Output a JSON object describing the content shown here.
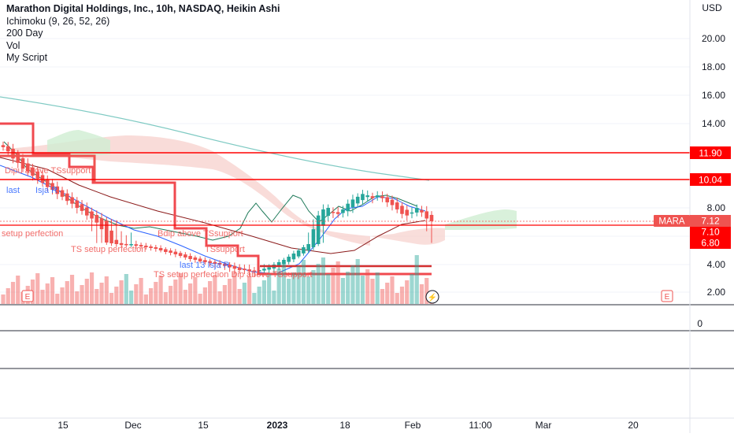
{
  "header": {
    "title": "Marathon Digital Holdings, Inc., 10h, NASDAQ, Heikin Ashi",
    "indicators": [
      "Ichimoku (9, 26, 52, 26)",
      "200 Day",
      "Vol",
      "My Script"
    ]
  },
  "price_axis": {
    "currency": "USD",
    "ticks": [
      "20.00",
      "18.00",
      "16.00",
      "14.00",
      "8.00",
      "4.00",
      "2.00"
    ],
    "volume_tick": "0"
  },
  "levels": [
    {
      "value": 11.9,
      "label": "11.90"
    },
    {
      "value": 10.04,
      "label": "10.04"
    },
    {
      "value": 7.1,
      "label": "7.10"
    },
    {
      "value": 6.8,
      "label": "6.80"
    }
  ],
  "price_tag": {
    "symbol": "MARA",
    "value": "7.12"
  },
  "time_axis": [
    "15",
    "Dec",
    "15",
    "2023",
    "18",
    "Feb",
    "11:00",
    "Mar",
    "20"
  ],
  "script_labels": [
    "Dipu above TSsupport",
    "last",
    "Isja R",
    "setup perfection",
    "TS setup perfection",
    "TSsupport",
    "Bdip above TSsupport",
    "last 13 Isja R",
    "TS setup perfection Dip above TSsupport"
  ],
  "markers": {
    "earnings": "E",
    "dividend": "⚡"
  },
  "colors": {
    "up": "#26a69a",
    "down": "#ef5350",
    "level": "#ff0000",
    "ts_line": "#f0494f",
    "ma200": "#7fcac3",
    "cloud_bear": "#f7d0cc",
    "cloud_bull": "#cfeed2",
    "tag_bg": "#ef5350",
    "text": "#131722"
  },
  "chart_data": {
    "type": "candlestick",
    "title": "Marathon Digital Holdings, Inc., 10h, NASDAQ, Heikin Ashi",
    "y_unit": "USD",
    "x_ticks": [
      "15",
      "Dec",
      "15",
      "2023",
      "18",
      "Feb",
      "11:00",
      "Mar",
      "20"
    ],
    "close_series": [
      12.3,
      12.0,
      11.5,
      11.2,
      10.8,
      10.6,
      10.3,
      10.1,
      9.8,
      9.5,
      9.3,
      9.0,
      8.8,
      8.5,
      8.3,
      8.0,
      7.8,
      7.5,
      7.3,
      7.1,
      7.0,
      6.8,
      6.7,
      6.6,
      6.5,
      6.5,
      6.6,
      6.4,
      6.3,
      6.2,
      6.1,
      6.0,
      5.8,
      5.6,
      5.5,
      5.3,
      5.1,
      4.9,
      4.7,
      4.6,
      4.4,
      4.3,
      4.2,
      4.1,
      4.0,
      3.9,
      3.8,
      3.7,
      3.6,
      3.6,
      3.5,
      3.5,
      3.6,
      3.7,
      3.8,
      4.0,
      4.3,
      4.6,
      5.0,
      5.4,
      5.8,
      6.2,
      6.6,
      7.0,
      7.5,
      7.9,
      8.0,
      7.7,
      7.6,
      7.9,
      8.3,
      8.6,
      8.8,
      9.0,
      8.9,
      8.7,
      8.9,
      8.7,
      8.4,
      8.2,
      7.9,
      7.6,
      7.5,
      7.7,
      8.0,
      7.7,
      7.3,
      7.12
    ],
    "ma200_start": 16.0,
    "ma200_end": 10.1,
    "levels": [
      11.9,
      10.04,
      7.1,
      6.8
    ],
    "last_price": 7.12,
    "ylim": [
      0,
      22
    ]
  }
}
